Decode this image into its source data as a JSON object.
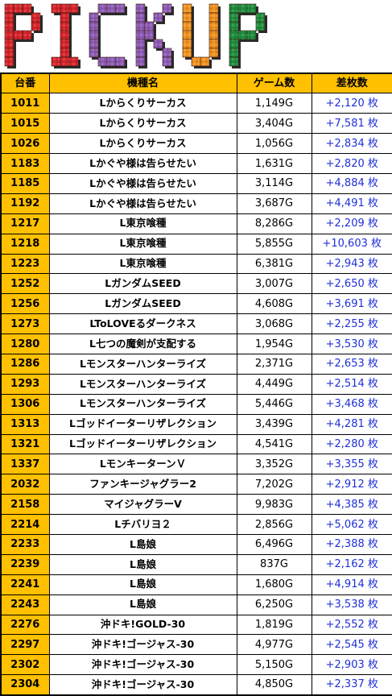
{
  "banner": {
    "letters": [
      "P",
      "I",
      "C",
      "K",
      "U",
      "P"
    ],
    "colors": {
      "P1": "#d8242b",
      "I": "#d8242b",
      "C": "#8e5bb6",
      "K": "#8e5bb6",
      "U": "#f19320",
      "P2": "#1f8f3f"
    }
  },
  "table": {
    "headers": {
      "num": "台番",
      "name": "機種名",
      "games": "ゲーム数",
      "diff": "差枚数"
    },
    "rows": [
      {
        "num": "1011",
        "name": "Lからくりサーカス",
        "games": "1,149G",
        "diff": "+2,120 枚"
      },
      {
        "num": "1015",
        "name": "Lからくりサーカス",
        "games": "3,404G",
        "diff": "+7,581 枚"
      },
      {
        "num": "1026",
        "name": "Lからくりサーカス",
        "games": "1,056G",
        "diff": "+2,834 枚"
      },
      {
        "num": "1183",
        "name": "Lかぐや様は告らせたい",
        "games": "1,631G",
        "diff": "+2,820 枚"
      },
      {
        "num": "1185",
        "name": "Lかぐや様は告らせたい",
        "games": "3,114G",
        "diff": "+4,884 枚"
      },
      {
        "num": "1192",
        "name": "Lかぐや様は告らせたい",
        "games": "3,687G",
        "diff": "+4,491 枚"
      },
      {
        "num": "1217",
        "name": "L東京喰種",
        "games": "8,286G",
        "diff": "+2,209 枚"
      },
      {
        "num": "1218",
        "name": "L東京喰種",
        "games": "5,855G",
        "diff": "+10,603 枚"
      },
      {
        "num": "1223",
        "name": "L東京喰種",
        "games": "6,381G",
        "diff": "+2,943 枚"
      },
      {
        "num": "1252",
        "name": "LガンダムSEED",
        "games": "3,007G",
        "diff": "+2,650 枚"
      },
      {
        "num": "1256",
        "name": "LガンダムSEED",
        "games": "4,608G",
        "diff": "+3,691 枚"
      },
      {
        "num": "1273",
        "name": "LToLOVEるダークネス",
        "games": "3,068G",
        "diff": "+2,255 枚"
      },
      {
        "num": "1280",
        "name": "L七つの魔剣が支配する",
        "games": "1,954G",
        "diff": "+3,530 枚"
      },
      {
        "num": "1286",
        "name": "Lモンスターハンターライズ",
        "games": "2,371G",
        "diff": "+2,653 枚"
      },
      {
        "num": "1293",
        "name": "Lモンスターハンターライズ",
        "games": "4,449G",
        "diff": "+2,514 枚"
      },
      {
        "num": "1306",
        "name": "Lモンスターハンターライズ",
        "games": "5,446G",
        "diff": "+3,468 枚"
      },
      {
        "num": "1313",
        "name": "Lゴッドイーターリザレクション",
        "games": "3,439G",
        "diff": "+4,281 枚"
      },
      {
        "num": "1321",
        "name": "Lゴッドイーターリザレクション",
        "games": "4,541G",
        "diff": "+2,280 枚"
      },
      {
        "num": "1337",
        "name": "LモンキーターンＶ",
        "games": "3,352G",
        "diff": "+3,355 枚"
      },
      {
        "num": "2032",
        "name": "ファンキージャグラー2",
        "games": "7,202G",
        "diff": "+2,912 枚"
      },
      {
        "num": "2158",
        "name": "マイジャグラーV",
        "games": "9,983G",
        "diff": "+4,385 枚"
      },
      {
        "num": "2214",
        "name": "Lチバリヨ２",
        "games": "2,856G",
        "diff": "+5,062 枚"
      },
      {
        "num": "2233",
        "name": "L島娘",
        "games": "6,496G",
        "diff": "+2,388 枚"
      },
      {
        "num": "2239",
        "name": "L島娘",
        "games": "837G",
        "diff": "+2,162 枚"
      },
      {
        "num": "2241",
        "name": "L島娘",
        "games": "1,680G",
        "diff": "+4,914 枚"
      },
      {
        "num": "2243",
        "name": "L島娘",
        "games": "6,250G",
        "diff": "+3,538 枚"
      },
      {
        "num": "2276",
        "name": "沖ドキ!GOLD-30",
        "games": "1,819G",
        "diff": "+2,552 枚"
      },
      {
        "num": "2297",
        "name": "沖ドキ!ゴージャス-30",
        "games": "4,977G",
        "diff": "+2,545 枚"
      },
      {
        "num": "2302",
        "name": "沖ドキ!ゴージャス-30",
        "games": "5,150G",
        "diff": "+2,903 枚"
      },
      {
        "num": "2304",
        "name": "沖ドキ!ゴージャス-30",
        "games": "4,850G",
        "diff": "+2,337 枚"
      }
    ]
  }
}
